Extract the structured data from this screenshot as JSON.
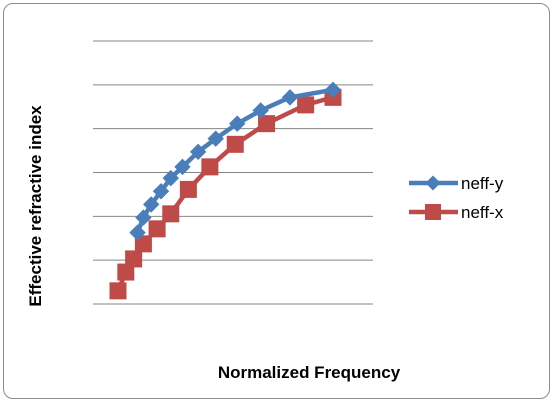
{
  "chart_data": {
    "type": "line",
    "title": "",
    "xlabel": "Normalized Frequency",
    "ylabel": "Effective refractive index",
    "grid": true,
    "legend_position": "right",
    "ylim": [
      0,
      7
    ],
    "series": [
      {
        "name": "neff-y",
        "color": "#4a7ebb",
        "marker": "diamond",
        "x": [
          1.0,
          1.3,
          1.7,
          2.2,
          2.7,
          3.3,
          4.1,
          5.0,
          6.1,
          7.3,
          8.8,
          11.0
        ],
        "y": [
          1.9,
          2.3,
          2.65,
          3.0,
          3.35,
          3.65,
          4.05,
          4.4,
          4.8,
          5.15,
          5.5,
          5.7
        ]
      },
      {
        "name": "neff-x",
        "color": "#be4b48",
        "marker": "square",
        "x": [
          0.0,
          0.4,
          0.8,
          1.3,
          2.0,
          2.7,
          3.6,
          4.7,
          6.0,
          7.6,
          9.6,
          11.0
        ],
        "y": [
          0.35,
          0.85,
          1.2,
          1.6,
          2.0,
          2.4,
          3.05,
          3.65,
          4.25,
          4.8,
          5.3,
          5.5
        ]
      }
    ]
  }
}
